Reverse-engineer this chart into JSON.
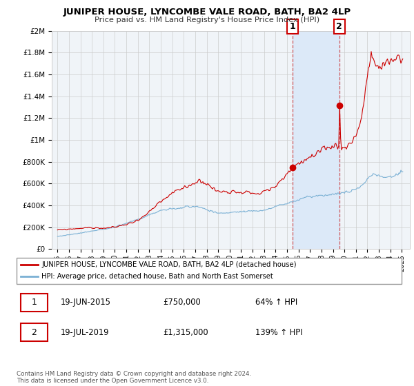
{
  "title": "JUNIPER HOUSE, LYNCOMBE VALE ROAD, BATH, BA2 4LP",
  "subtitle": "Price paid vs. HM Land Registry's House Price Index (HPI)",
  "red_label": "JUNIPER HOUSE, LYNCOMBE VALE ROAD, BATH, BA2 4LP (detached house)",
  "blue_label": "HPI: Average price, detached house, Bath and North East Somerset",
  "annotation1_date": "19-JUN-2015",
  "annotation1_price": "£750,000",
  "annotation1_hpi": "64% ↑ HPI",
  "annotation2_date": "19-JUL-2019",
  "annotation2_price": "£1,315,000",
  "annotation2_hpi": "139% ↑ HPI",
  "xmin": 1994.5,
  "xmax": 2025.7,
  "ymin": 0,
  "ymax": 2000000,
  "yticks": [
    0,
    200000,
    400000,
    600000,
    800000,
    1000000,
    1200000,
    1400000,
    1600000,
    1800000,
    2000000
  ],
  "ytick_labels": [
    "£0",
    "£200K",
    "£400K",
    "£600K",
    "£800K",
    "£1M",
    "£1.2M",
    "£1.4M",
    "£1.6M",
    "£1.8M",
    "£2M"
  ],
  "sale1_x": 2015.47,
  "sale1_y": 750000,
  "sale2_x": 2019.55,
  "sale2_y": 1315000,
  "vline1_x": 2015.47,
  "vline2_x": 2019.55,
  "footnote": "Contains HM Land Registry data © Crown copyright and database right 2024.\nThis data is licensed under the Open Government Licence v3.0.",
  "background_color": "#ffffff",
  "plot_bg_color": "#f0f4f8",
  "shaded_region_color": "#dce9f8",
  "red_color": "#cc0000",
  "blue_color": "#7ab0d4",
  "grid_color": "#cccccc"
}
